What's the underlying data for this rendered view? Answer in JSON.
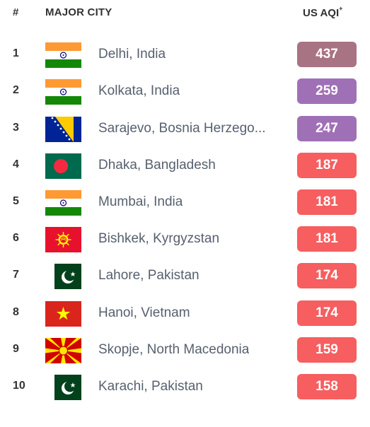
{
  "header": {
    "rank_label": "#",
    "city_label": "MAJOR CITY",
    "aqi_label": "US AQI",
    "aqi_sup": "+"
  },
  "colors": {
    "hazardous": "#a87383",
    "very_unhealthy": "#a070b6",
    "unhealthy": "#f65e5f"
  },
  "rows": [
    {
      "rank": "1",
      "city": "Delhi, India",
      "aqi": "437",
      "flag": "india-flag-icon",
      "level": "hazardous"
    },
    {
      "rank": "2",
      "city": "Kolkata, India",
      "aqi": "259",
      "flag": "india-flag-icon",
      "level": "very_unhealthy"
    },
    {
      "rank": "3",
      "city": "Sarajevo, Bosnia Herzego...",
      "aqi": "247",
      "flag": "bosnia-flag-icon",
      "level": "very_unhealthy"
    },
    {
      "rank": "4",
      "city": "Dhaka, Bangladesh",
      "aqi": "187",
      "flag": "bangladesh-flag-icon",
      "level": "unhealthy"
    },
    {
      "rank": "5",
      "city": "Mumbai, India",
      "aqi": "181",
      "flag": "india-flag-icon",
      "level": "unhealthy"
    },
    {
      "rank": "6",
      "city": "Bishkek, Kyrgyzstan",
      "aqi": "181",
      "flag": "kyrgyzstan-flag-icon",
      "level": "unhealthy"
    },
    {
      "rank": "7",
      "city": "Lahore, Pakistan",
      "aqi": "174",
      "flag": "pakistan-flag-icon",
      "level": "unhealthy"
    },
    {
      "rank": "8",
      "city": "Hanoi, Vietnam",
      "aqi": "174",
      "flag": "vietnam-flag-icon",
      "level": "unhealthy"
    },
    {
      "rank": "9",
      "city": "Skopje, North Macedonia",
      "aqi": "159",
      "flag": "north-macedonia-flag-icon",
      "level": "unhealthy"
    },
    {
      "rank": "10",
      "city": "Karachi, Pakistan",
      "aqi": "158",
      "flag": "pakistan-flag-icon",
      "level": "unhealthy"
    }
  ]
}
